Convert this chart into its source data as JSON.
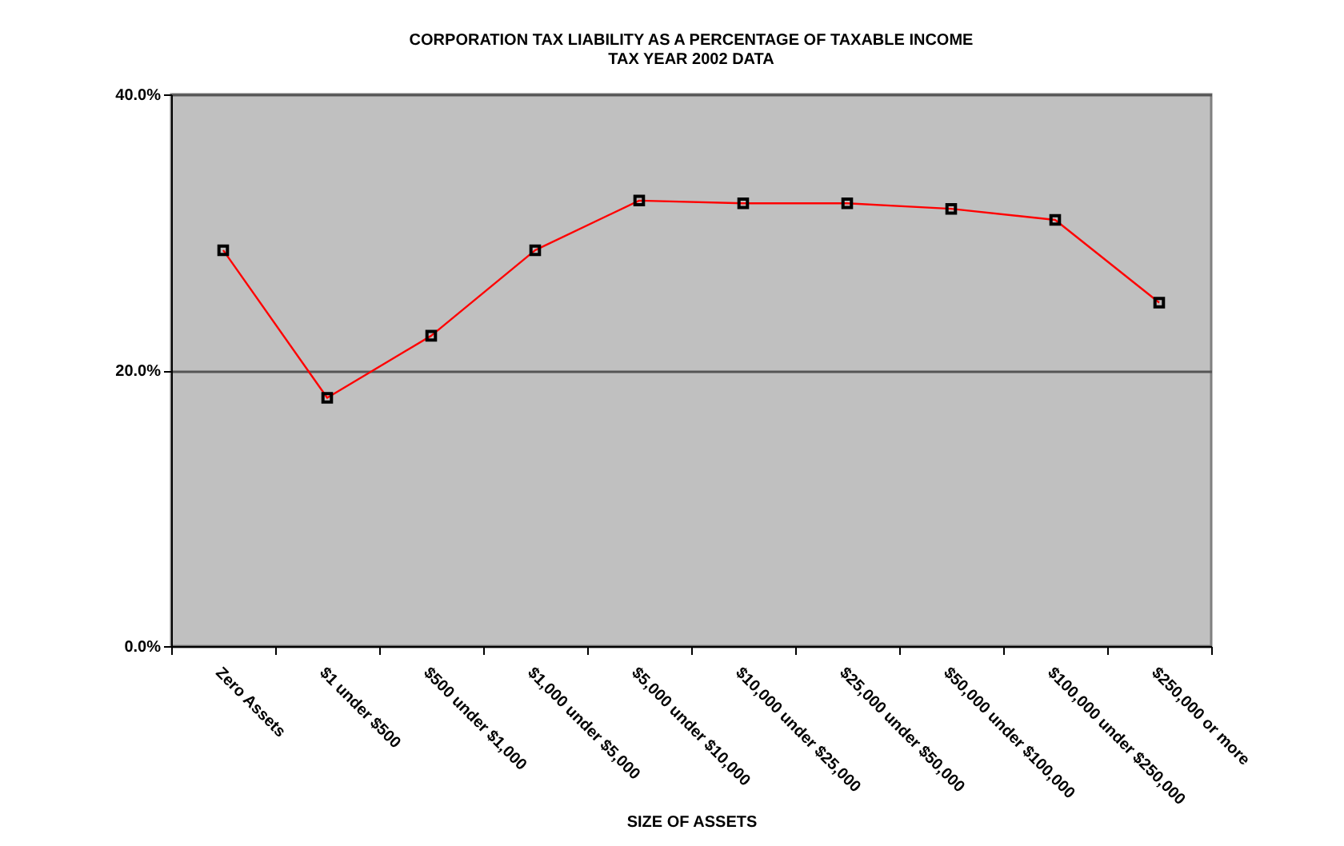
{
  "chart_data": {
    "type": "line",
    "title": "CORPORATION TAX LIABILITY AS A PERCENTAGE OF TAXABLE INCOME",
    "subtitle": "TAX YEAR 2002 DATA",
    "xlabel": "SIZE OF ASSETS",
    "categories": [
      "Zero Assets",
      "$1 under $500",
      "$500 under $1,000",
      "$1,000 under $5,000",
      "$5,000 under $10,000",
      "$10,000 under $25,000",
      "$25,000 under $50,000",
      "$50,000 under $100,000",
      "$100,000 under $250,000",
      "$250,000 or more"
    ],
    "series": [
      {
        "color": "#ff0000",
        "values": [
          28.7,
          18.0,
          22.5,
          28.7,
          32.3,
          32.1,
          32.1,
          31.7,
          30.9,
          24.9
        ]
      }
    ],
    "ylim": [
      0,
      40
    ],
    "yticks": [
      {
        "value": 0,
        "label": "0.0%"
      },
      {
        "value": 20,
        "label": "20.0%"
      },
      {
        "value": 40,
        "label": "40.0%"
      }
    ],
    "grid": "y",
    "marker": "square",
    "line_style": "solid"
  }
}
